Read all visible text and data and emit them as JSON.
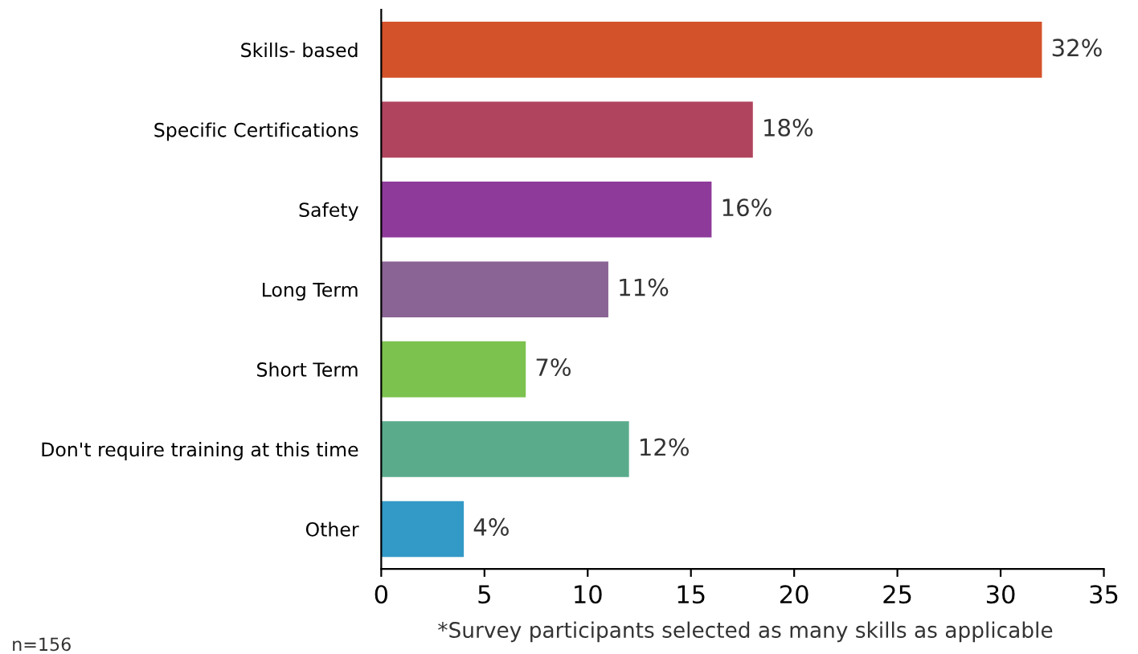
{
  "chart_data": {
    "type": "bar",
    "orientation": "horizontal",
    "categories": [
      "Skills- based",
      "Specific Certifications",
      "Safety",
      "Long Term",
      "Short Term",
      "Don't require training at this time",
      "Other"
    ],
    "values": [
      32,
      18,
      16,
      11,
      7,
      12,
      4
    ],
    "colors": [
      "#d4522a",
      "#b0445e",
      "#8e3a9a",
      "#8a6494",
      "#7cc24e",
      "#5aab8c",
      "#3399c6"
    ],
    "value_labels": [
      "32%",
      "18%",
      "16%",
      "11%",
      "7%",
      "12%",
      "4%"
    ],
    "xlim": [
      0,
      35
    ],
    "xticks": [
      0,
      5,
      10,
      15,
      20,
      25,
      30,
      35
    ],
    "grid": false,
    "annotations": [
      "*Survey participants selected as many skills as applicable",
      "n=156"
    ]
  }
}
